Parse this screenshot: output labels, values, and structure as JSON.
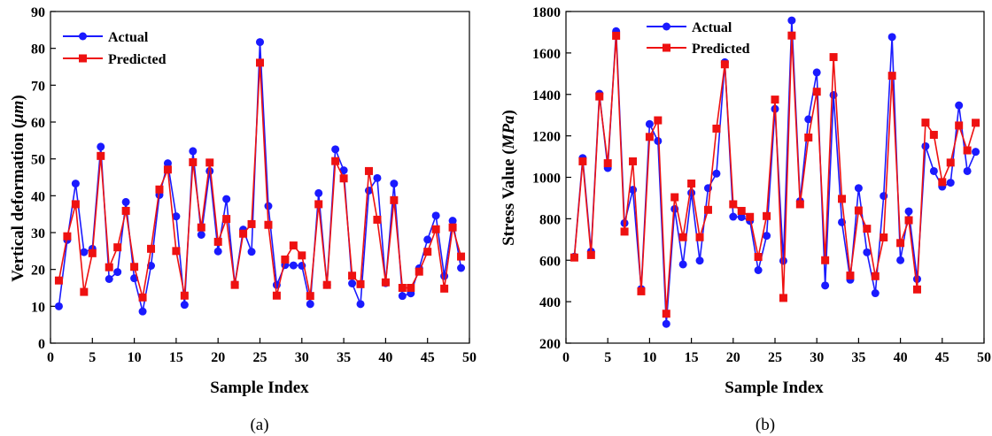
{
  "chart_data": [
    {
      "type": "line",
      "caption": "(a)",
      "title": "",
      "xlabel": "Sample Index",
      "ylabel_text": "Vertical deformation (",
      "ylabel_unit": "μm",
      "ylabel_close": ")",
      "xlim": [
        0,
        50
      ],
      "ylim": [
        0,
        90
      ],
      "xticks": [
        "0",
        "5",
        "10",
        "15",
        "20",
        "25",
        "30",
        "35",
        "40",
        "45",
        "50"
      ],
      "yticks": [
        "0",
        "10",
        "20",
        "30",
        "40",
        "50",
        "60",
        "70",
        "80",
        "90"
      ],
      "grid": false,
      "legend_position": "top-left",
      "x": [
        1,
        2,
        3,
        4,
        5,
        6,
        7,
        8,
        9,
        10,
        11,
        12,
        13,
        14,
        15,
        16,
        17,
        18,
        19,
        20,
        21,
        22,
        23,
        24,
        25,
        26,
        27,
        28,
        29,
        30,
        31,
        32,
        33,
        34,
        35,
        36,
        37,
        38,
        39,
        40,
        41,
        42,
        43,
        44,
        45,
        46,
        47,
        48,
        49
      ],
      "series": [
        {
          "name": "Actual",
          "color": "#1a1aff",
          "marker": "circle",
          "values": [
            10,
            28,
            43.3,
            24.7,
            25.6,
            53.3,
            17.4,
            19.3,
            38.3,
            17.6,
            8.6,
            21,
            40.2,
            48.8,
            34.4,
            10.4,
            52.1,
            29.4,
            46.7,
            24.9,
            39.1,
            16,
            30.8,
            24.8,
            81.7,
            37.2,
            15.8,
            21.2,
            21.1,
            21,
            10.6,
            40.7,
            15.8,
            52.6,
            46.9,
            16.2,
            10.6,
            41.4,
            44.8,
            16.3,
            43.3,
            12.8,
            13.5,
            20.3,
            28.1,
            34.6,
            18.2,
            33.2,
            20.4
          ]
        },
        {
          "name": "Predicted",
          "color": "#ee1111",
          "marker": "square",
          "values": [
            17,
            29,
            37.7,
            13.9,
            24.4,
            50.8,
            20.6,
            26,
            35.9,
            20.7,
            12.4,
            25.6,
            41.7,
            47.1,
            25,
            12.9,
            49.1,
            31.4,
            49,
            27.5,
            33.7,
            15.8,
            29.7,
            32.3,
            76.1,
            32.1,
            12.9,
            22.7,
            26.5,
            23.8,
            12.8,
            37.7,
            15.8,
            49.4,
            44.7,
            18.3,
            16,
            46.7,
            33.5,
            16.5,
            38.8,
            15,
            15,
            19.4,
            24.8,
            30.9,
            14.8,
            31.4,
            23.5
          ]
        }
      ]
    },
    {
      "type": "line",
      "caption": "(b)",
      "title": "",
      "xlabel": "Sample Index",
      "ylabel_text": "Stress Value (",
      "ylabel_unit": "MPa",
      "ylabel_close": ")",
      "xlim": [
        0,
        50
      ],
      "ylim": [
        200,
        1800
      ],
      "xticks": [
        "0",
        "5",
        "10",
        "15",
        "20",
        "25",
        "30",
        "35",
        "40",
        "45",
        "50"
      ],
      "yticks": [
        "200",
        "400",
        "600",
        "800",
        "1000",
        "1200",
        "1400",
        "1600",
        "1800"
      ],
      "grid": false,
      "legend_position": "top-left",
      "x": [
        1,
        2,
        3,
        4,
        5,
        6,
        7,
        8,
        9,
        10,
        11,
        12,
        13,
        14,
        15,
        16,
        17,
        18,
        19,
        20,
        21,
        22,
        23,
        24,
        25,
        26,
        27,
        28,
        29,
        30,
        31,
        32,
        33,
        34,
        35,
        36,
        37,
        38,
        39,
        40,
        41,
        42,
        43,
        44,
        45,
        46,
        47,
        48,
        49
      ],
      "series": [
        {
          "name": "Actual",
          "color": "#1a1aff",
          "marker": "circle",
          "values": [
            617,
            1093,
            642,
            1403,
            1045,
            1705,
            779,
            940,
            461,
            1257,
            1175,
            293,
            847,
            580,
            925,
            598,
            948,
            1018,
            1555,
            810,
            808,
            790,
            552,
            718,
            1330,
            597,
            1757,
            885,
            1280,
            1506,
            478,
            1397,
            783,
            506,
            948,
            638,
            441,
            910,
            1677,
            600,
            836,
            509,
            1150,
            1030,
            955,
            974,
            1347,
            1030,
            1123
          ]
        },
        {
          "name": "Predicted",
          "color": "#ee1111",
          "marker": "square",
          "values": [
            613,
            1077,
            625,
            1390,
            1068,
            1683,
            738,
            1077,
            450,
            1195,
            1275,
            342,
            904,
            711,
            970,
            711,
            843,
            1235,
            1545,
            870,
            838,
            809,
            616,
            813,
            1375,
            418,
            1684,
            870,
            1192,
            1413,
            600,
            1580,
            896,
            526,
            840,
            752,
            523,
            710,
            1490,
            683,
            793,
            459,
            1264,
            1205,
            977,
            1071,
            1250,
            1130,
            1263
          ]
        }
      ]
    }
  ]
}
